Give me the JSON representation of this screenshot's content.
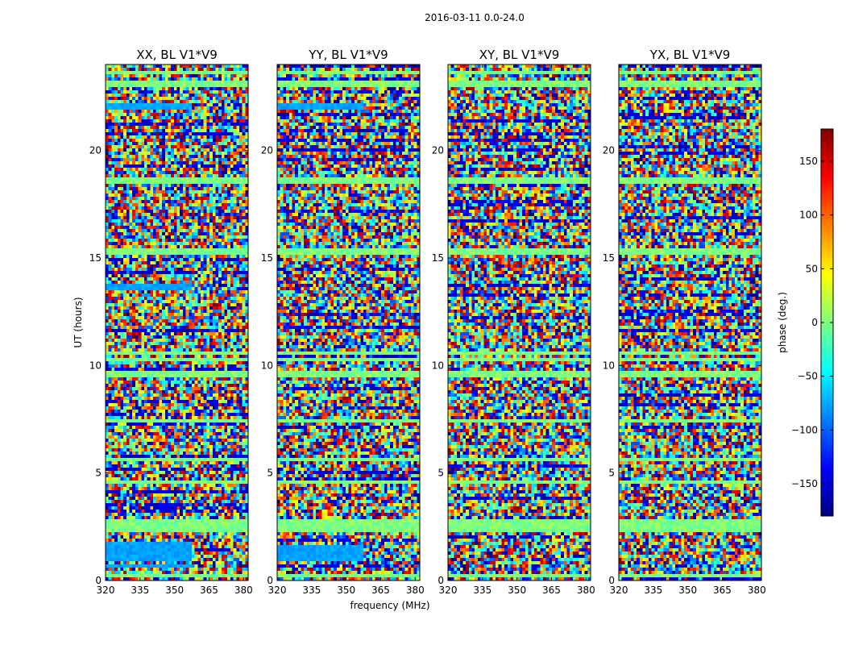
{
  "chart_data": {
    "type": "heatmap",
    "suptitle": "2016-03-11 0.0-24.0",
    "xlabel": "frequency (MHz)",
    "ylabel": "UT (hours)",
    "xlim": [
      320,
      382
    ],
    "ylim": [
      0,
      24
    ],
    "xticks": [
      320,
      335,
      350,
      365,
      380
    ],
    "yticks": [
      0,
      5,
      10,
      15,
      20
    ],
    "panels": [
      {
        "title": "XX, BL V1*V9",
        "flagged_hours": [
          [
            0.55,
            0.7
          ],
          [
            0.9,
            1.85
          ],
          [
            13.55,
            13.75
          ],
          [
            21.95,
            22.15
          ]
        ]
      },
      {
        "title": "YY, BL V1*V9",
        "flagged_hours": [
          [
            0.9,
            1.65
          ],
          [
            21.95,
            22.15
          ]
        ]
      },
      {
        "title": "XY, BL V1*V9",
        "flagged_hours": []
      },
      {
        "title": "YX, BL V1*V9",
        "flagged_hours": []
      }
    ],
    "colorbar": {
      "label": "phase (deg.)",
      "range": [
        -180,
        180
      ],
      "ticks": [
        150,
        100,
        50,
        0,
        -50,
        -100,
        -150
      ],
      "colormap": "jet"
    },
    "highlight_stripes_hours": [
      23.6,
      23.1,
      18.6,
      15.3,
      10.55,
      10.3,
      9.6,
      7.4,
      5.6,
      4.6,
      2.7,
      2.4,
      0.25
    ]
  },
  "colors": {
    "axes_edge": "#000000",
    "colormap_stops": [
      "#00007f",
      "#0000ff",
      "#007fff",
      "#00ffff",
      "#7fff7f",
      "#ffff00",
      "#ff7f00",
      "#ff0000",
      "#7f0000"
    ]
  }
}
